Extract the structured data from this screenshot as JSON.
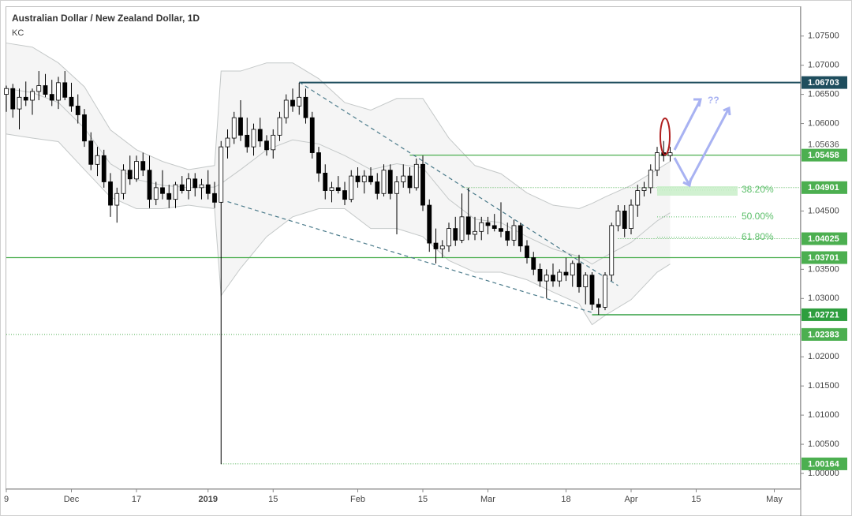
{
  "chart_data": {
    "type": "candlestick",
    "title": "Australian Dollar / New Zealand Dollar, 1D",
    "indicator": "KC",
    "x": [
      0,
      1,
      2,
      3,
      4,
      5,
      6,
      7,
      8,
      9,
      10,
      11,
      12,
      13,
      14,
      15,
      16,
      17,
      18,
      19,
      20,
      21,
      22,
      23,
      24,
      25,
      26,
      27,
      28,
      29,
      30,
      31,
      32,
      33,
      34,
      35,
      36,
      37,
      38,
      39,
      40,
      41,
      42,
      43,
      44,
      45,
      46,
      47,
      48,
      49,
      50,
      51,
      52,
      53,
      54,
      55,
      56,
      57,
      58,
      59,
      60,
      61,
      62,
      63,
      64,
      65,
      66,
      67,
      68,
      69,
      70,
      71,
      72,
      73,
      74,
      75,
      76,
      77,
      78,
      79,
      80,
      81,
      82,
      83,
      84,
      85,
      86,
      87,
      88,
      89,
      90,
      91,
      92,
      93,
      94,
      95,
      96,
      97,
      98,
      99,
      100,
      101,
      102
    ],
    "open": [
      1.065,
      1.066,
      1.0625,
      1.0645,
      1.064,
      1.0655,
      1.0665,
      1.065,
      1.064,
      1.067,
      1.0645,
      1.063,
      1.0615,
      1.057,
      1.053,
      1.0545,
      1.05,
      1.046,
      1.048,
      1.052,
      1.0505,
      1.0535,
      1.052,
      1.047,
      1.049,
      1.048,
      1.047,
      1.0495,
      1.0485,
      1.0505,
      1.049,
      1.0495,
      1.048,
      1.0465,
      1.056,
      1.0575,
      1.061,
      1.058,
      1.056,
      1.059,
      1.057,
      1.0555,
      1.058,
      1.061,
      1.064,
      1.063,
      1.0645,
      1.061,
      1.055,
      1.0515,
      1.0485,
      1.049,
      1.0485,
      1.047,
      1.051,
      1.05,
      1.051,
      1.05,
      1.048,
      1.052,
      1.048,
      1.05,
      1.051,
      1.049,
      1.053,
      1.046,
      1.0395,
      1.0385,
      1.039,
      1.042,
      1.04,
      1.044,
      1.041,
      1.0415,
      1.043,
      1.0425,
      1.042,
      1.0415,
      1.04,
      1.0425,
      1.039,
      1.037,
      1.035,
      1.033,
      1.034,
      1.033,
      1.0345,
      1.034,
      1.036,
      1.032,
      1.034,
      1.029,
      1.0285,
      1.034,
      1.0425,
      1.045,
      1.042,
      1.046,
      1.0485,
      1.049,
      1.052,
      1.055,
      1.0545
    ],
    "high": [
      1.0665,
      1.0668,
      1.066,
      1.0672,
      1.066,
      1.069,
      1.0685,
      1.0675,
      1.068,
      1.069,
      1.067,
      1.065,
      1.0625,
      1.0585,
      1.056,
      1.0555,
      1.0515,
      1.049,
      1.053,
      1.0545,
      1.0545,
      1.055,
      1.0545,
      1.05,
      1.052,
      1.0495,
      1.05,
      1.051,
      1.0515,
      1.0515,
      1.0505,
      1.052,
      1.05,
      1.057,
      1.059,
      1.062,
      1.064,
      1.061,
      1.06,
      1.061,
      1.058,
      1.059,
      1.062,
      1.065,
      1.066,
      1.067,
      1.066,
      1.062,
      1.056,
      1.053,
      1.05,
      1.051,
      1.05,
      1.052,
      1.0525,
      1.052,
      1.0525,
      1.0515,
      1.053,
      1.053,
      1.051,
      1.053,
      1.0525,
      1.054,
      1.0545,
      1.047,
      1.042,
      1.04,
      1.043,
      1.044,
      1.048,
      1.049,
      1.044,
      1.044,
      1.044,
      1.0445,
      1.0465,
      1.043,
      1.0435,
      1.043,
      1.04,
      1.038,
      1.036,
      1.035,
      1.036,
      1.035,
      1.037,
      1.0365,
      1.0375,
      1.0345,
      1.0345,
      1.03,
      1.0345,
      1.043,
      1.046,
      1.046,
      1.047,
      1.0495,
      1.05,
      1.053,
      1.056,
      1.057,
      1.056
    ],
    "low": [
      1.062,
      1.061,
      1.059,
      1.063,
      1.0615,
      1.064,
      1.0645,
      1.063,
      1.0625,
      1.064,
      1.062,
      1.06,
      1.056,
      1.052,
      1.051,
      1.049,
      1.044,
      1.043,
      1.047,
      1.0495,
      1.05,
      1.051,
      1.0455,
      1.046,
      1.047,
      1.0455,
      1.0455,
      1.048,
      1.047,
      1.0475,
      1.047,
      1.047,
      1.0455,
      1.0016,
      1.054,
      1.0565,
      1.057,
      1.055,
      1.0545,
      1.056,
      1.0545,
      1.054,
      1.057,
      1.06,
      1.062,
      1.0615,
      1.06,
      1.054,
      1.05,
      1.047,
      1.0465,
      1.048,
      1.046,
      1.0465,
      1.049,
      1.048,
      1.0495,
      1.047,
      1.0475,
      1.047,
      1.041,
      1.049,
      1.048,
      1.0485,
      1.045,
      1.038,
      1.036,
      1.037,
      1.038,
      1.039,
      1.0395,
      1.04,
      1.04,
      1.04,
      1.041,
      1.0415,
      1.0405,
      1.039,
      1.039,
      1.038,
      1.036,
      1.034,
      1.032,
      1.03,
      1.032,
      1.032,
      1.033,
      1.032,
      1.031,
      1.029,
      1.028,
      1.0272,
      1.028,
      1.033,
      1.0415,
      1.0405,
      1.041,
      1.044,
      1.0475,
      1.048,
      1.051,
      1.0535,
      1.0535
    ],
    "close": [
      1.066,
      1.0625,
      1.0645,
      1.064,
      1.0655,
      1.0665,
      1.065,
      1.064,
      1.067,
      1.0645,
      1.063,
      1.0615,
      1.057,
      1.053,
      1.0545,
      1.05,
      1.046,
      1.048,
      1.052,
      1.0505,
      1.0535,
      1.052,
      1.047,
      1.049,
      1.048,
      1.047,
      1.0495,
      1.0485,
      1.0505,
      1.049,
      1.0495,
      1.048,
      1.0465,
      1.056,
      1.0575,
      1.061,
      1.058,
      1.056,
      1.059,
      1.057,
      1.0555,
      1.058,
      1.061,
      1.064,
      1.063,
      1.0645,
      1.061,
      1.055,
      1.0515,
      1.0485,
      1.049,
      1.0485,
      1.047,
      1.051,
      1.05,
      1.051,
      1.05,
      1.048,
      1.052,
      1.048,
      1.05,
      1.051,
      1.049,
      1.053,
      1.046,
      1.0395,
      1.0385,
      1.039,
      1.042,
      1.04,
      1.044,
      1.041,
      1.0415,
      1.043,
      1.0425,
      1.042,
      1.0415,
      1.04,
      1.0425,
      1.039,
      1.037,
      1.035,
      1.033,
      1.034,
      1.033,
      1.0345,
      1.034,
      1.036,
      1.032,
      1.034,
      1.029,
      1.0285,
      1.034,
      1.0425,
      1.045,
      1.042,
      1.046,
      1.0485,
      1.049,
      1.052,
      1.055,
      1.0545,
      1.055
    ],
    "up_color": "#ffffff",
    "down_color": "#000000",
    "xlim": [
      0,
      122
    ],
    "ylim": [
      0.9973,
      1.0801
    ],
    "xticks": [
      {
        "value": 0,
        "label": "9"
      },
      {
        "value": 10,
        "label": "Dec"
      },
      {
        "value": 20,
        "label": "17"
      },
      {
        "value": 31,
        "label": "2019"
      },
      {
        "value": 41,
        "label": "15"
      },
      {
        "value": 54,
        "label": "Feb"
      },
      {
        "value": 64,
        "label": "15"
      },
      {
        "value": 74,
        "label": "Mar"
      },
      {
        "value": 86,
        "label": "18"
      },
      {
        "value": 96,
        "label": "Apr"
      },
      {
        "value": 106,
        "label": "15"
      },
      {
        "value": 118,
        "label": "May"
      }
    ],
    "yticks": [
      {
        "value": 1.075,
        "label": "1.07500"
      },
      {
        "value": 1.07,
        "label": "1.07000"
      },
      {
        "value": 1.065,
        "label": "1.06500"
      },
      {
        "value": 1.06,
        "label": "1.06000"
      },
      {
        "value": 1.045,
        "label": "1.04500"
      },
      {
        "value": 1.035,
        "label": "1.03500"
      },
      {
        "value": 1.03,
        "label": "1.03000"
      },
      {
        "value": 1.02,
        "label": "1.02000"
      },
      {
        "value": 1.015,
        "label": "1.01500"
      },
      {
        "value": 1.01,
        "label": "1.01000"
      },
      {
        "value": 1.005,
        "label": "1.00500"
      },
      {
        "value": 1,
        "label": "1.00000"
      }
    ],
    "last_price": 1.05636,
    "keltner": {
      "color": "#c4c8c8",
      "fill": "#f5f5f5",
      "x": [
        0,
        4,
        8,
        12,
        16,
        20,
        24,
        28,
        32,
        33,
        36,
        40,
        44,
        48,
        52,
        56,
        60,
        64,
        68,
        72,
        76,
        80,
        84,
        88,
        90,
        92,
        96,
        100,
        102
      ],
      "upper": [
        1.0738,
        1.0731,
        1.0704,
        1.0663,
        1.0589,
        1.0555,
        1.0535,
        1.0521,
        1.0528,
        1.069,
        1.069,
        1.0704,
        1.0704,
        1.0677,
        1.0636,
        1.0623,
        1.0643,
        1.0643,
        1.0575,
        1.0528,
        1.0514,
        1.0481,
        1.046,
        1.0454,
        1.0463,
        1.0474,
        1.0494,
        1.0521,
        1.0535
      ],
      "middle": [
        1.066,
        1.0653,
        1.0636,
        1.0592,
        1.0531,
        1.0504,
        1.0494,
        1.049,
        1.0491,
        1.0497,
        1.0521,
        1.0555,
        1.0572,
        1.0565,
        1.0545,
        1.0521,
        1.0531,
        1.0524,
        1.047,
        1.0436,
        1.043,
        1.0406,
        1.0385,
        1.0372,
        1.0359,
        1.0372,
        1.0396,
        1.0433,
        1.0447
      ],
      "lower": [
        1.0582,
        1.0575,
        1.0569,
        1.0521,
        1.0474,
        1.0454,
        1.0454,
        1.046,
        1.0454,
        1.0305,
        1.0352,
        1.0406,
        1.044,
        1.0454,
        1.0454,
        1.042,
        1.042,
        1.0406,
        1.0365,
        1.0345,
        1.0345,
        1.0332,
        1.0311,
        1.0291,
        1.0255,
        1.0271,
        1.0298,
        1.0345,
        1.0359
      ]
    },
    "levels": [
      {
        "price": 1.06703,
        "from": 45,
        "color": "#1f4e5e",
        "style": "solid"
      },
      {
        "price": 1.05458,
        "from": 62,
        "color": "#4caf50",
        "style": "solid"
      },
      {
        "price": 1.04901,
        "from": 70,
        "color": "#4caf50",
        "style": "dotted"
      },
      {
        "price": 1.04025,
        "from": 94,
        "color": "#4caf50",
        "style": "dotted"
      },
      {
        "price": 1.03701,
        "from": 0,
        "color": "#4caf50",
        "style": "solid"
      },
      {
        "price": 1.02721,
        "from": 90,
        "color": "#2e9e3e",
        "style": "solid"
      },
      {
        "price": 1.02383,
        "from": 0,
        "color": "#4caf50",
        "style": "dotted"
      },
      {
        "price": 1.00164,
        "from": 33,
        "color": "#4caf50",
        "style": "dotted"
      }
    ],
    "fibonacci": {
      "labels": [
        "38.20%",
        "50.00%",
        "61.80%"
      ],
      "prices": [
        1.0486,
        1.044,
        1.0405
      ],
      "from": 100,
      "color": "#5cbf6a"
    },
    "trendlines": [
      {
        "x": [
          45,
          94
        ],
        "y": [
          1.0671,
          1.0322
        ]
      },
      {
        "x": [
          34,
          90
        ],
        "y": [
          1.0466,
          1.0276
        ]
      }
    ],
    "annotation": "??"
  }
}
